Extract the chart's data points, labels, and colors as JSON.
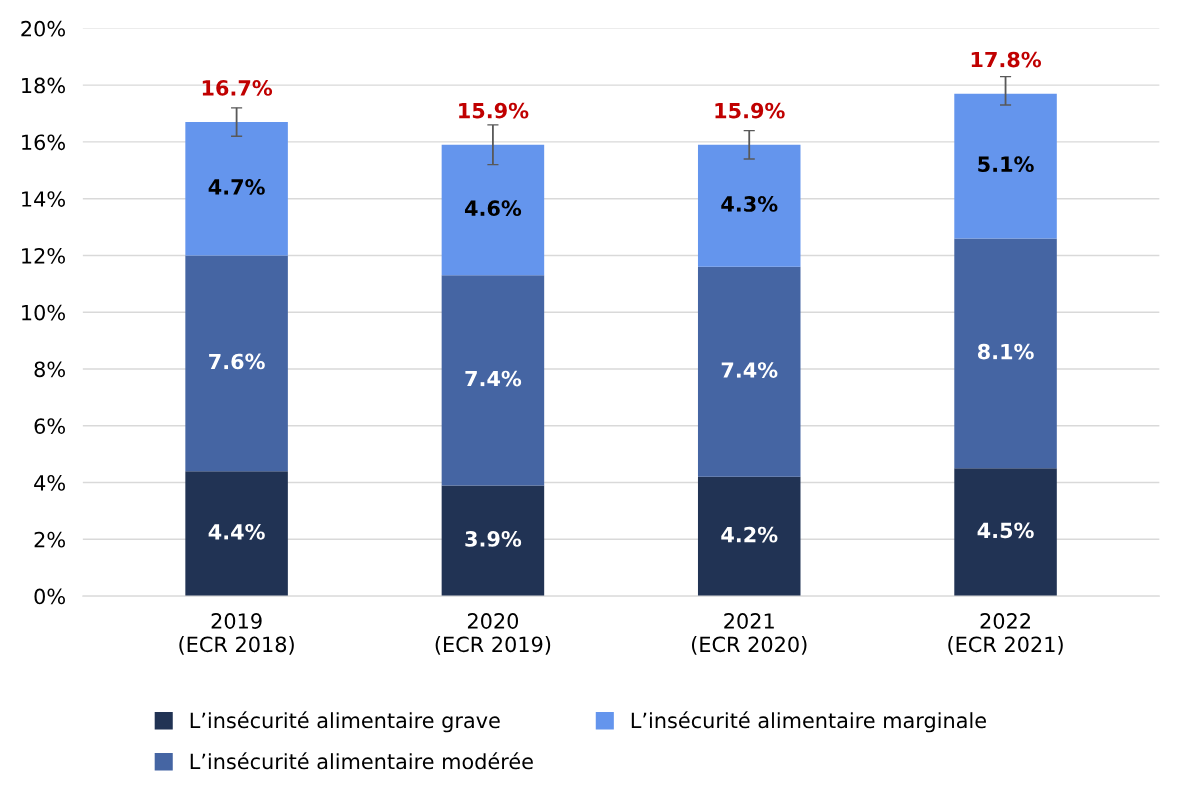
{
  "chart_data": {
    "type": "bar",
    "stacked": true,
    "categories": [
      "2019\n(ECR 2018)",
      "2020\n(ECR 2019)",
      "2021\n(ECR 2020)",
      "2022\n(ECR 2021)"
    ],
    "series": [
      {
        "name": "L’insécurité alimentaire grave",
        "color": "#213354",
        "values": [
          4.4,
          3.9,
          4.2,
          4.5
        ],
        "value_labels": [
          "4.4%",
          "3.9%",
          "4.2%",
          "4.5%"
        ]
      },
      {
        "name": "L’insécurité alimentaire modérée",
        "color": "#4565a3",
        "values": [
          7.6,
          7.4,
          7.4,
          8.1
        ],
        "value_labels": [
          "7.6%",
          "7.4%",
          "7.4%",
          "8.1%"
        ]
      },
      {
        "name": "L’insécurité alimentaire marginale",
        "color": "#6495ed",
        "values": [
          4.7,
          4.6,
          4.3,
          5.1
        ],
        "value_labels": [
          "4.7%",
          "4.6%",
          "4.3%",
          "5.1%"
        ],
        "errors": [
          [
            16.2,
            17.2
          ],
          [
            15.2,
            16.6
          ],
          [
            15.4,
            16.4
          ],
          [
            17.3,
            18.3
          ]
        ]
      }
    ],
    "totals": [
      "16.7%",
      "15.9%",
      "15.9%",
      "17.8%"
    ],
    "ylim": [
      0,
      20
    ],
    "yticks": [
      {
        "value": 0,
        "label": "0%"
      },
      {
        "value": 2,
        "label": "2%"
      },
      {
        "value": 4,
        "label": "4%"
      },
      {
        "value": 6,
        "label": "6%"
      },
      {
        "value": 8,
        "label": "8%"
      },
      {
        "value": 10,
        "label": "10%"
      },
      {
        "value": 12,
        "label": "12%"
      },
      {
        "value": 14,
        "label": "14%"
      },
      {
        "value": 16,
        "label": "16%"
      },
      {
        "value": 18,
        "label": "18%"
      },
      {
        "value": 20,
        "label": "20%"
      }
    ],
    "grid": "y",
    "legend": "bottom"
  }
}
